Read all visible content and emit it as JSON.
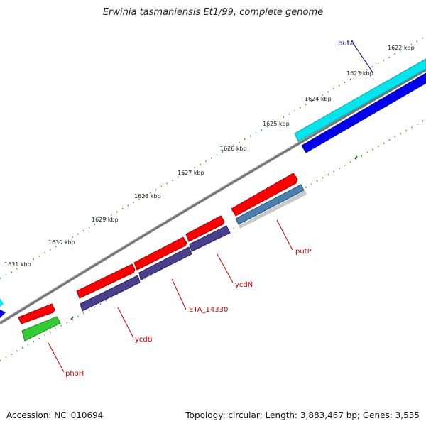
{
  "title": "Erwinia tasmaniensis Et1/99, complete genome",
  "accession": "Accession: NC_010694",
  "summary": "Topology: circular; Length: 3,883,467 bp; Genes: 3,535",
  "ticks": [
    {
      "label": "1622 kbp"
    },
    {
      "label": "1623 kbp"
    },
    {
      "label": "1624 kbp"
    },
    {
      "label": "1625 kbp"
    },
    {
      "label": "1626 kbp"
    },
    {
      "label": "1627 kbp"
    },
    {
      "label": "1628 kbp"
    },
    {
      "label": "1629 kbp"
    },
    {
      "label": "1630 kbp"
    },
    {
      "label": "1631 kbp"
    }
  ],
  "genes": [
    {
      "name": "putA",
      "color": "#0000cc"
    },
    {
      "name": "putP",
      "color": "#cc0000"
    },
    {
      "name": "ycdN",
      "color": "#cc0000"
    },
    {
      "name": "ETA_14330",
      "color": "#cc0000"
    },
    {
      "name": "ycdB",
      "color": "#cc0000"
    },
    {
      "name": "phoH",
      "color": "#cc0000"
    }
  ],
  "colors": {
    "backbone": "#7a7a7a",
    "cds_forward": "#ff0000",
    "cds_reverse_purple": "#4a3f8c",
    "cds_reverse_blue": "#0000ee",
    "cds_cyan": "#00e5ee",
    "cds_green": "#33cc33",
    "cds_steel": "#4a7fb0",
    "tick": "#1a7a1a"
  }
}
